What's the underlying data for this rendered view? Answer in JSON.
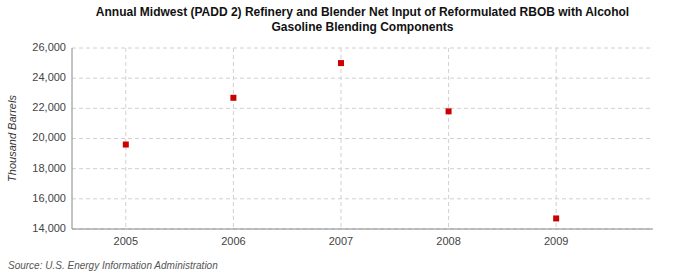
{
  "chart_data": {
    "type": "scatter",
    "title": "Annual Midwest (PADD 2) Refinery and Blender Net Input of Reformulated RBOB with Alcohol\nGasoline Blending Components",
    "y_label": "Thousand Barrels",
    "source": "Source: U.S. Energy Information Administration",
    "x": [
      2005,
      2006,
      2007,
      2008,
      2009
    ],
    "values": [
      19600,
      22700,
      25000,
      21800,
      14700
    ],
    "color": "#cc0000",
    "marker": "square",
    "xlim": [
      2004.5,
      2009.9
    ],
    "xticks": [
      2005,
      2006,
      2007,
      2008,
      2009
    ],
    "ylim": [
      14000,
      26000
    ],
    "yticks": [
      {
        "value": 14000,
        "label": "14,000"
      },
      {
        "value": 16000,
        "label": "16,000"
      },
      {
        "value": 18000,
        "label": "18,000"
      },
      {
        "value": 20000,
        "label": "20,000"
      },
      {
        "value": 22000,
        "label": "22,000"
      },
      {
        "value": 24000,
        "label": "24,000"
      },
      {
        "value": 26000,
        "label": "26,000"
      }
    ],
    "grid": true
  }
}
